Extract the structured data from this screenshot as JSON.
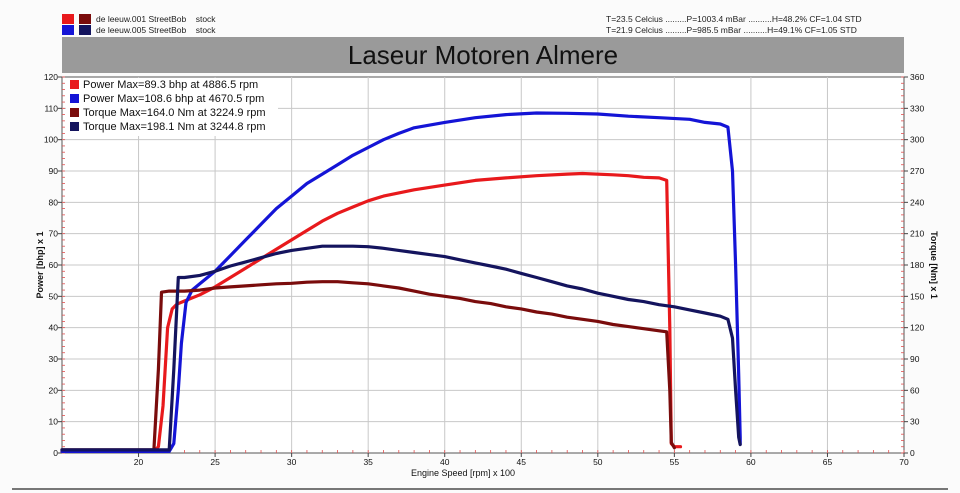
{
  "runs": [
    {
      "label": "de leeuw.001 StreetBob",
      "mod": "stock",
      "conditions": "T=23.5 Celcius .........P=1003.4 mBar ..........H=48.2% CF=1.04 STD",
      "power_color": "#e8191c",
      "torque_color": "#7a0c0c"
    },
    {
      "label": "de leeuw.005 StreetBob",
      "mod": "stock",
      "conditions": "T=21.9 Celcius .........P=985.5 mBar ..........H=49.1% CF=1.05 STD",
      "power_color": "#1414d6",
      "torque_color": "#14145e"
    }
  ],
  "chart_data": {
    "type": "line",
    "title": "Laseur Motoren Almere",
    "xlabel": "Engine Speed [rpm] x 100",
    "ylabel_left": "Power [bhp] x 1",
    "ylabel_right": "Torque [Nm] x 1",
    "xlim": [
      15,
      70
    ],
    "ylim_left": [
      0,
      120
    ],
    "ylim_right": [
      0,
      360
    ],
    "x_ticks": [
      20,
      25,
      30,
      35,
      40,
      45,
      50,
      55,
      60,
      65,
      70
    ],
    "y_ticks_left": [
      0,
      10,
      20,
      30,
      40,
      50,
      60,
      70,
      80,
      90,
      100,
      110,
      120
    ],
    "y_ticks_right": [
      0,
      30,
      60,
      90,
      120,
      150,
      180,
      210,
      240,
      270,
      300,
      330,
      360
    ],
    "grid": true,
    "legend_position": "top-left",
    "legend": [
      "Power  Max=89.3 bhp at 4886.5 rpm",
      "Power  Max=108.6 bhp at 4670.5 rpm",
      "Torque  Max=164.0 Nm at 3224.9 rpm",
      "Torque  Max=198.1 Nm at 3244.8 rpm"
    ],
    "series": [
      {
        "name": "Power",
        "axis": "left",
        "color": "#e8191c",
        "points": [
          [
            15,
            0.5
          ],
          [
            21,
            0.5
          ],
          [
            21.3,
            2
          ],
          [
            21.6,
            15
          ],
          [
            21.9,
            40
          ],
          [
            22.2,
            46
          ],
          [
            22.5,
            47.5
          ],
          [
            23,
            48.5
          ],
          [
            24,
            50.5
          ],
          [
            25,
            53
          ],
          [
            26,
            56
          ],
          [
            27,
            59
          ],
          [
            28,
            62
          ],
          [
            29,
            65
          ],
          [
            30,
            68
          ],
          [
            31,
            71
          ],
          [
            32,
            74
          ],
          [
            33,
            76.5
          ],
          [
            34,
            78.5
          ],
          [
            35,
            80.5
          ],
          [
            36,
            82
          ],
          [
            37,
            83
          ],
          [
            38,
            84
          ],
          [
            40,
            85.5
          ],
          [
            42,
            87
          ],
          [
            44,
            87.8
          ],
          [
            46,
            88.5
          ],
          [
            48,
            89
          ],
          [
            49,
            89.2
          ],
          [
            51,
            88.8
          ],
          [
            52,
            88.5
          ],
          [
            53,
            88
          ],
          [
            54,
            87.8
          ],
          [
            54.5,
            87
          ],
          [
            54.7,
            40
          ],
          [
            54.8,
            3
          ],
          [
            55,
            2
          ],
          [
            55.4,
            2
          ]
        ]
      },
      {
        "name": "Power",
        "axis": "left",
        "color": "#1414d6",
        "points": [
          [
            15,
            0.5
          ],
          [
            22,
            0.5
          ],
          [
            22.3,
            3
          ],
          [
            22.6,
            20
          ],
          [
            22.8,
            35
          ],
          [
            23.1,
            48
          ],
          [
            23.5,
            52
          ],
          [
            24,
            54
          ],
          [
            25,
            58
          ],
          [
            26,
            63
          ],
          [
            27,
            68
          ],
          [
            28,
            73
          ],
          [
            29,
            78
          ],
          [
            30,
            82
          ],
          [
            31,
            86
          ],
          [
            32,
            89
          ],
          [
            33,
            92
          ],
          [
            34,
            95
          ],
          [
            35,
            97.5
          ],
          [
            36,
            100
          ],
          [
            37,
            102
          ],
          [
            38,
            103.8
          ],
          [
            40,
            105.5
          ],
          [
            42,
            107
          ],
          [
            44,
            108
          ],
          [
            46,
            108.5
          ],
          [
            48,
            108.4
          ],
          [
            50,
            108.2
          ],
          [
            52,
            107.5
          ],
          [
            54,
            107
          ],
          [
            56,
            106.5
          ],
          [
            57,
            105.5
          ],
          [
            58,
            105
          ],
          [
            58.5,
            104
          ],
          [
            58.8,
            90
          ],
          [
            59,
            60
          ],
          [
            59.2,
            25
          ],
          [
            59.3,
            5
          ],
          [
            59.3,
            3
          ]
        ]
      },
      {
        "name": "Torque",
        "axis": "right",
        "color": "#7a0c0c",
        "points": [
          [
            15,
            3
          ],
          [
            21,
            3
          ],
          [
            21.3,
            80
          ],
          [
            21.5,
            154
          ],
          [
            22,
            155
          ],
          [
            23,
            155
          ],
          [
            24,
            156
          ],
          [
            25,
            158
          ],
          [
            26,
            159
          ],
          [
            27,
            160
          ],
          [
            28,
            161
          ],
          [
            29,
            162
          ],
          [
            30,
            162.5
          ],
          [
            31,
            163.5
          ],
          [
            32,
            164
          ],
          [
            33,
            164
          ],
          [
            34,
            163
          ],
          [
            35,
            162
          ],
          [
            36,
            160
          ],
          [
            37,
            158
          ],
          [
            38,
            155
          ],
          [
            39,
            152
          ],
          [
            40,
            150
          ],
          [
            41,
            148
          ],
          [
            42,
            145
          ],
          [
            43,
            143
          ],
          [
            44,
            140
          ],
          [
            45,
            138
          ],
          [
            46,
            135
          ],
          [
            47,
            133
          ],
          [
            48,
            130
          ],
          [
            49,
            128
          ],
          [
            50,
            126
          ],
          [
            51,
            123
          ],
          [
            52,
            121
          ],
          [
            53,
            119
          ],
          [
            54,
            117
          ],
          [
            54.5,
            116
          ],
          [
            54.7,
            60
          ],
          [
            54.8,
            10
          ],
          [
            55,
            5
          ]
        ]
      },
      {
        "name": "Torque",
        "axis": "right",
        "color": "#14145e",
        "points": [
          [
            15,
            3
          ],
          [
            22,
            3
          ],
          [
            22.3,
            80
          ],
          [
            22.6,
            168
          ],
          [
            23,
            168
          ],
          [
            24,
            170
          ],
          [
            25,
            174
          ],
          [
            26,
            179
          ],
          [
            27,
            183
          ],
          [
            28,
            187
          ],
          [
            29,
            191
          ],
          [
            30,
            194
          ],
          [
            31,
            196
          ],
          [
            32,
            198
          ],
          [
            33,
            198
          ],
          [
            34,
            198
          ],
          [
            35,
            197.5
          ],
          [
            36,
            196
          ],
          [
            37,
            194
          ],
          [
            38,
            192
          ],
          [
            39,
            190
          ],
          [
            40,
            188
          ],
          [
            41,
            185
          ],
          [
            42,
            182
          ],
          [
            43,
            179
          ],
          [
            44,
            176
          ],
          [
            45,
            172
          ],
          [
            46,
            168
          ],
          [
            47,
            164
          ],
          [
            48,
            160
          ],
          [
            49,
            157
          ],
          [
            50,
            153
          ],
          [
            51,
            150
          ],
          [
            52,
            147
          ],
          [
            53,
            145
          ],
          [
            54,
            142
          ],
          [
            55,
            140
          ],
          [
            56,
            137
          ],
          [
            57,
            134
          ],
          [
            58,
            131
          ],
          [
            58.5,
            128
          ],
          [
            58.8,
            110
          ],
          [
            59,
            60
          ],
          [
            59.2,
            15
          ],
          [
            59.3,
            8
          ]
        ]
      }
    ]
  }
}
